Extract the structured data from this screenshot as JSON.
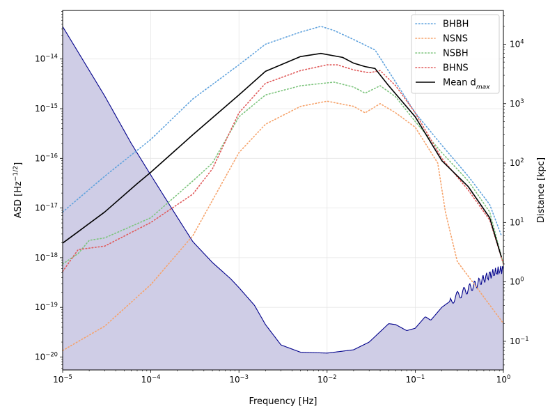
{
  "chart_data": {
    "type": "line",
    "xlabel": "Frequency [Hz]",
    "ylabel_left": "ASD [Hz$^{-1/2}$]",
    "ylabel_right": "Distance [kpc]",
    "x_scale": "log",
    "y_scale_left": "log",
    "y_scale_right": "log",
    "xlim": [
      1e-05,
      1
    ],
    "ylim_left": [
      5.5e-21,
      9.5e-14
    ],
    "ylim_right": [
      0.033,
      37000
    ],
    "grid": true,
    "legend_position": "top-right",
    "x_ticks": [
      "10^-5",
      "10^-4",
      "10^-3",
      "10^-2",
      "10^-1",
      "10^0"
    ],
    "y_ticks_left": [
      "10^-20",
      "10^-19",
      "10^-18",
      "10^-17",
      "10^-16",
      "10^-15",
      "10^-14"
    ],
    "y_ticks_right": [
      "10^-1",
      "10^0",
      "10^1",
      "10^2",
      "10^3",
      "10^4"
    ],
    "asd_curve": {
      "axis": "left",
      "color": "#00008b",
      "fill_color": "#cfcde6",
      "points": [
        [
          1e-05,
          4.5e-14
        ],
        [
          3e-05,
          1.8e-15
        ],
        [
          6e-05,
          2e-16
        ],
        [
          0.0001,
          4.6e-17
        ],
        [
          0.0002,
          6.5e-18
        ],
        [
          0.0003,
          2.1e-18
        ],
        [
          0.0005,
          8e-19
        ],
        [
          0.0008,
          3.8e-19
        ],
        [
          0.001,
          2.5e-19
        ],
        [
          0.0015,
          1.1e-19
        ],
        [
          0.002,
          4.5e-20
        ],
        [
          0.003,
          1.75e-20
        ],
        [
          0.005,
          1.25e-20
        ],
        [
          0.01,
          1.2e-20
        ],
        [
          0.02,
          1.4e-20
        ],
        [
          0.03,
          2e-20
        ],
        [
          0.05,
          4.7e-20
        ],
        [
          0.06,
          4.5e-20
        ],
        [
          0.08,
          3.4e-20
        ],
        [
          0.1,
          3.8e-20
        ],
        [
          0.13,
          6.5e-20
        ],
        [
          0.15,
          5.5e-20
        ],
        [
          0.2,
          1e-19
        ],
        [
          0.3,
          1.7e-19
        ],
        [
          0.5,
          3e-19
        ],
        [
          0.7,
          4.5e-19
        ],
        [
          1.0,
          6e-19
        ]
      ]
    },
    "series": [
      {
        "name": "BHBH",
        "axis": "right",
        "style": "dotted",
        "color": "#5fa2dd",
        "points": [
          [
            1e-05,
            15
          ],
          [
            3e-05,
            60
          ],
          [
            0.0001,
            250
          ],
          [
            0.0003,
            1200
          ],
          [
            0.001,
            4500
          ],
          [
            0.002,
            10000
          ],
          [
            0.005,
            16000
          ],
          [
            0.0085,
            20000
          ],
          [
            0.012,
            17000
          ],
          [
            0.02,
            12000
          ],
          [
            0.035,
            8000
          ],
          [
            0.05,
            3500
          ],
          [
            0.1,
            700
          ],
          [
            0.2,
            200
          ],
          [
            0.4,
            60
          ],
          [
            0.7,
            20
          ],
          [
            0.95,
            6
          ]
        ]
      },
      {
        "name": "NSNS",
        "axis": "right",
        "style": "dotted",
        "color": "#f6a36b",
        "points": [
          [
            1e-05,
            0.07
          ],
          [
            3e-05,
            0.18
          ],
          [
            0.0001,
            0.9
          ],
          [
            0.0003,
            6
          ],
          [
            0.001,
            150
          ],
          [
            0.002,
            450
          ],
          [
            0.005,
            900
          ],
          [
            0.01,
            1100
          ],
          [
            0.02,
            900
          ],
          [
            0.027,
            700
          ],
          [
            0.04,
            1000
          ],
          [
            0.06,
            700
          ],
          [
            0.1,
            400
          ],
          [
            0.18,
            100
          ],
          [
            0.22,
            15
          ],
          [
            0.3,
            2.2
          ],
          [
            0.5,
            0.8
          ],
          [
            1.0,
            0.2
          ]
        ]
      },
      {
        "name": "NSBH",
        "axis": "right",
        "style": "dotted",
        "color": "#7cc47c",
        "points": [
          [
            1e-05,
            2
          ],
          [
            1.5e-05,
            3
          ],
          [
            2e-05,
            5
          ],
          [
            3e-05,
            5.5
          ],
          [
            0.0001,
            12
          ],
          [
            0.0003,
            50
          ],
          [
            0.0005,
            100
          ],
          [
            0.001,
            600
          ],
          [
            0.002,
            1400
          ],
          [
            0.005,
            2000
          ],
          [
            0.012,
            2300
          ],
          [
            0.02,
            1900
          ],
          [
            0.027,
            1500
          ],
          [
            0.04,
            2000
          ],
          [
            0.06,
            1300
          ],
          [
            0.1,
            500
          ],
          [
            0.2,
            150
          ],
          [
            0.4,
            50
          ],
          [
            0.7,
            15
          ],
          [
            1.0,
            2
          ]
        ]
      },
      {
        "name": "BHNS",
        "axis": "right",
        "style": "dotted",
        "color": "#e05a5a",
        "points": [
          [
            1e-05,
            1.5
          ],
          [
            1.5e-05,
            3.5
          ],
          [
            3e-05,
            4
          ],
          [
            0.0001,
            10
          ],
          [
            0.0003,
            30
          ],
          [
            0.0005,
            80
          ],
          [
            0.001,
            700
          ],
          [
            0.002,
            2200
          ],
          [
            0.005,
            3600
          ],
          [
            0.01,
            4500
          ],
          [
            0.013,
            4500
          ],
          [
            0.02,
            3700
          ],
          [
            0.03,
            3300
          ],
          [
            0.04,
            3600
          ],
          [
            0.06,
            2000
          ],
          [
            0.1,
            700
          ],
          [
            0.2,
            120
          ],
          [
            0.4,
            35
          ],
          [
            0.7,
            11
          ],
          [
            1.0,
            2
          ]
        ]
      },
      {
        "name": "Mean d$_{max}$",
        "axis": "right",
        "style": "solid",
        "color": "#000000",
        "points": [
          [
            1e-05,
            4.5
          ],
          [
            1.5e-05,
            7
          ],
          [
            3e-05,
            15
          ],
          [
            7e-05,
            45
          ],
          [
            0.0001,
            70
          ],
          [
            0.0003,
            300
          ],
          [
            0.001,
            1400
          ],
          [
            0.002,
            3500
          ],
          [
            0.005,
            6200
          ],
          [
            0.0085,
            7000
          ],
          [
            0.015,
            6000
          ],
          [
            0.02,
            4800
          ],
          [
            0.027,
            4200
          ],
          [
            0.035,
            3900
          ],
          [
            0.05,
            2000
          ],
          [
            0.1,
            600
          ],
          [
            0.2,
            110
          ],
          [
            0.4,
            40
          ],
          [
            0.7,
            12
          ],
          [
            0.95,
            2.6
          ]
        ]
      }
    ]
  }
}
